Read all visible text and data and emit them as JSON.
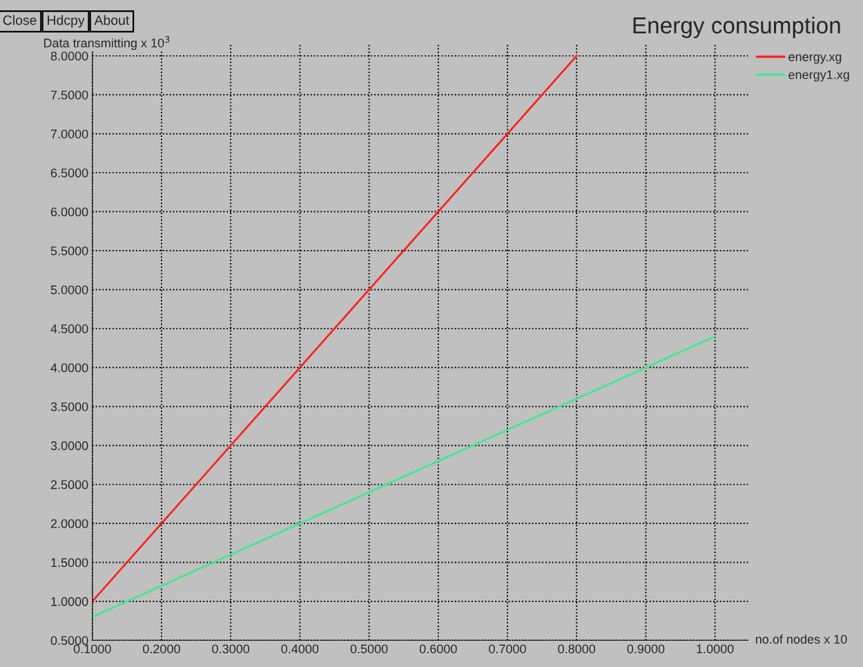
{
  "chart_data": {
    "type": "line",
    "title": "Energy consumption",
    "xlabel": "no.of nodes x 10",
    "ylabel": "Data transmitting x 10$^{3}$",
    "annotations": [
      "Close",
      "Hdcpy",
      "About"
    ],
    "series": [
      {
        "name": "energy.xg",
        "color": "#ff2020",
        "x": [
          0.1,
          0.8
        ],
        "values": [
          1.0,
          8.0
        ]
      },
      {
        "name": "energy1.xg",
        "color": "#40e890",
        "x": [
          0.1,
          1.0
        ],
        "values": [
          0.8,
          4.4
        ]
      }
    ],
    "xlim": [
      0.1,
      1.048
    ],
    "ylim": [
      0.5,
      8.16
    ],
    "xticks": [
      {
        "value": 0.1,
        "label": "0.1000"
      },
      {
        "value": 0.2,
        "label": "0.2000"
      },
      {
        "value": 0.3,
        "label": "0.3000"
      },
      {
        "value": 0.4,
        "label": "0.4000"
      },
      {
        "value": 0.5,
        "label": "0.5000"
      },
      {
        "value": 0.6,
        "label": "0.6000"
      },
      {
        "value": 0.7,
        "label": "0.7000"
      },
      {
        "value": 0.8,
        "label": "0.8000"
      },
      {
        "value": 0.9,
        "label": "0.9000"
      },
      {
        "value": 1.0,
        "label": "1.0000"
      }
    ],
    "yticks": [
      {
        "value": 0.5,
        "label": "0.5000"
      },
      {
        "value": 1.0,
        "label": "1.0000"
      },
      {
        "value": 1.5,
        "label": "1.5000"
      },
      {
        "value": 2.0,
        "label": "2.0000"
      },
      {
        "value": 2.5,
        "label": "2.5000"
      },
      {
        "value": 3.0,
        "label": "3.0000"
      },
      {
        "value": 3.5,
        "label": "3.5000"
      },
      {
        "value": 4.0,
        "label": "4.0000"
      },
      {
        "value": 4.5,
        "label": "4.5000"
      },
      {
        "value": 5.0,
        "label": "5.0000"
      },
      {
        "value": 5.5,
        "label": "5.5000"
      },
      {
        "value": 6.0,
        "label": "6.0000"
      },
      {
        "value": 6.5,
        "label": "6.5000"
      },
      {
        "value": 7.0,
        "label": "7.0000"
      },
      {
        "value": 7.5,
        "label": "7.5000"
      },
      {
        "value": 8.0,
        "label": "8.0000"
      }
    ],
    "grid": true,
    "legend": "top right",
    "marker": "none",
    "line_style": "solid"
  }
}
